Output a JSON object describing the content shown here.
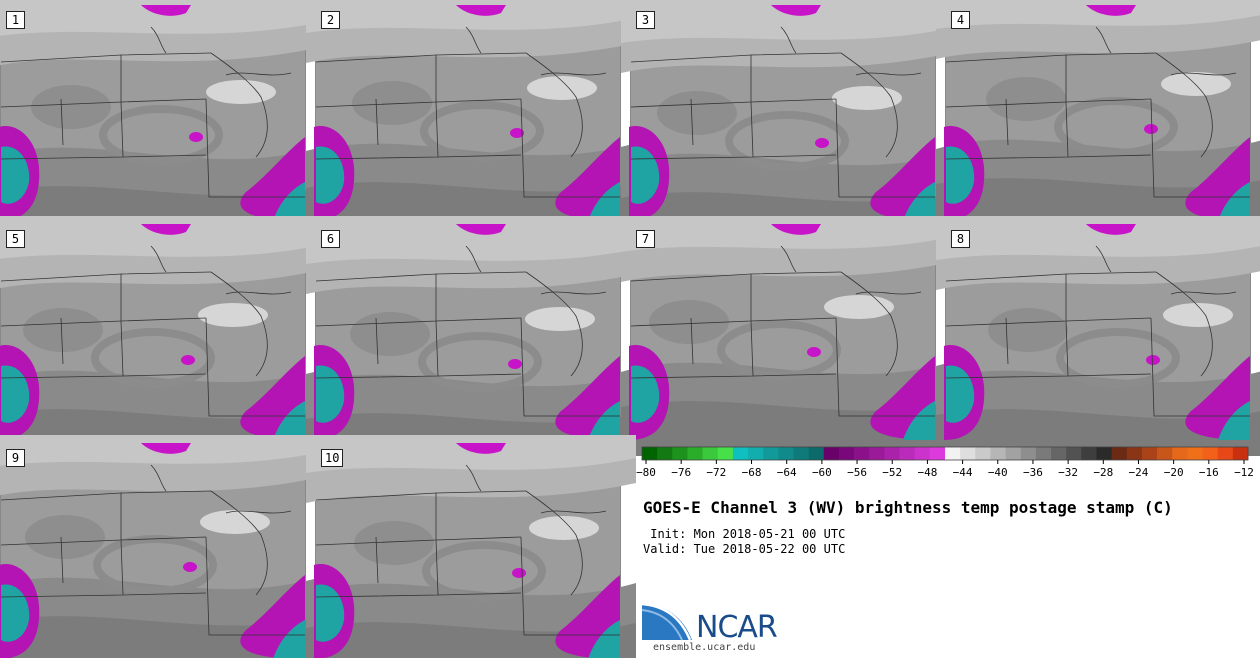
{
  "panels": [
    {
      "label": "1",
      "dx": 0,
      "dy": 0
    },
    {
      "label": "2",
      "dx": 6,
      "dy": -4
    },
    {
      "label": "3",
      "dx": -4,
      "dy": 6
    },
    {
      "label": "4",
      "dx": 10,
      "dy": -8
    },
    {
      "label": "5",
      "dx": -8,
      "dy": 4
    },
    {
      "label": "6",
      "dx": 4,
      "dy": 8
    },
    {
      "label": "7",
      "dx": -12,
      "dy": -4
    },
    {
      "label": "8",
      "dx": 12,
      "dy": 4
    },
    {
      "label": "9",
      "dx": -6,
      "dy": -8
    },
    {
      "label": "10",
      "dx": 8,
      "dy": -2
    }
  ],
  "colorbar": {
    "colors": [
      "#006400",
      "#117a11",
      "#1d931d",
      "#2aae2a",
      "#3cc83c",
      "#48e048",
      "#0fc0c0",
      "#12aeae",
      "#129a9a",
      "#108a8a",
      "#0e7a7a",
      "#0c6a6a",
      "#6a006a",
      "#7a087a",
      "#8a118a",
      "#9a1a9a",
      "#aa22aa",
      "#bb2bbb",
      "#cc33cc",
      "#dd3add",
      "#f2f2f2",
      "#dedede",
      "#cacaca",
      "#b6b6b6",
      "#a2a2a2",
      "#8e8e8e",
      "#7a7a7a",
      "#666666",
      "#525252",
      "#3e3e3e",
      "#2a2a2a",
      "#6a2a14",
      "#8a3516",
      "#aa4418",
      "#c8561a",
      "#e6681a",
      "#f0701a",
      "#f2601a",
      "#e84818",
      "#c83010"
    ],
    "ticks": [
      "-80",
      "-76",
      "-72",
      "-68",
      "-64",
      "-60",
      "-56",
      "-52",
      "-48",
      "-44",
      "-40",
      "-36",
      "-32",
      "-28",
      "-24",
      "-20",
      "-16",
      "-12"
    ]
  },
  "title": "GOES-E Channel 3 (WV) brightness temp postage stamp (C)",
  "init": " Init: Mon 2018-05-21 00 UTC",
  "valid": "Valid: Tue 2018-05-22 00 UTC",
  "logo": {
    "name": "NCAR",
    "url": "ensemble.ucar.edu"
  }
}
